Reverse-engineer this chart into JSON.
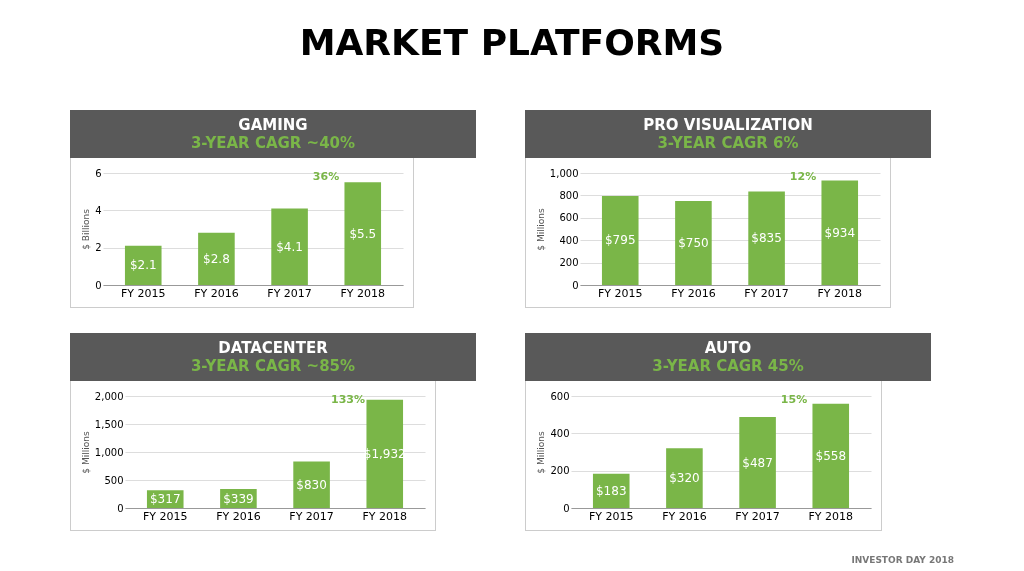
{
  "chart_data": [
    {
      "type": "other",
      "title": "MARKET PLATFORMS",
      "annotations": [
        "INVESTOR DAY 2018"
      ]
    },
    {
      "type": "bar",
      "title": "GAMING",
      "subtitle": "3-YEAR CAGR ~40%",
      "ylabel": "$ Billions",
      "categories": [
        "FY 2015",
        "FY 2016",
        "FY 2017",
        "FY 2018"
      ],
      "values": [
        2.1,
        2.8,
        4.1,
        5.5
      ],
      "value_labels": [
        "$2.1",
        "$2.8",
        "$4.1",
        "$5.5"
      ],
      "color": "#7ab648",
      "ylim": [
        0,
        6
      ],
      "yticks": [
        0,
        2,
        4,
        6
      ],
      "grid": "y",
      "annotations": [
        "36%"
      ]
    },
    {
      "type": "bar",
      "title": "PRO VISUALIZATION",
      "subtitle": "3-YEAR CAGR 6%",
      "ylabel": "$ Millions",
      "categories": [
        "FY 2015",
        "FY 2016",
        "FY 2017",
        "FY 2018"
      ],
      "values": [
        795,
        750,
        835,
        934
      ],
      "value_labels": [
        "$795",
        "$750",
        "$835",
        "$934"
      ],
      "color": "#7ab648",
      "ylim": [
        0,
        1000
      ],
      "yticks": [
        0,
        200,
        400,
        600,
        800,
        {
          "value": 1000,
          "label": "1,000"
        }
      ],
      "grid": "y",
      "annotations": [
        "12%"
      ]
    },
    {
      "type": "bar",
      "title": "DATACENTER",
      "subtitle": "3-YEAR CAGR ~85%",
      "ylabel": "$ Millions",
      "categories": [
        "FY 2015",
        "FY 2016",
        "FY 2017",
        "FY 2018"
      ],
      "values": [
        317,
        339,
        830,
        1932
      ],
      "value_labels": [
        "$317",
        "$339",
        "$830",
        "$1,932"
      ],
      "color": "#7ab648",
      "ylim": [
        0,
        2000
      ],
      "yticks": [
        0,
        500,
        {
          "value": 1000,
          "label": "1,000"
        },
        {
          "value": 1500,
          "label": "1,500"
        },
        {
          "value": 2000,
          "label": "2,000"
        }
      ],
      "grid": "y",
      "annotations": [
        "133%"
      ]
    },
    {
      "type": "bar",
      "title": "AUTO",
      "subtitle": "3-YEAR CAGR 45%",
      "ylabel": "$ Millions",
      "categories": [
        "FY 2015",
        "FY 2016",
        "FY 2017",
        "FY 2018"
      ],
      "values": [
        183,
        320,
        487,
        558
      ],
      "value_labels": [
        "$183",
        "$320",
        "$487",
        "$558"
      ],
      "color": "#7ab648",
      "ylim": [
        0,
        600
      ],
      "yticks": [
        0,
        200,
        400,
        600
      ],
      "grid": "y",
      "annotations": [
        "15%"
      ]
    }
  ]
}
